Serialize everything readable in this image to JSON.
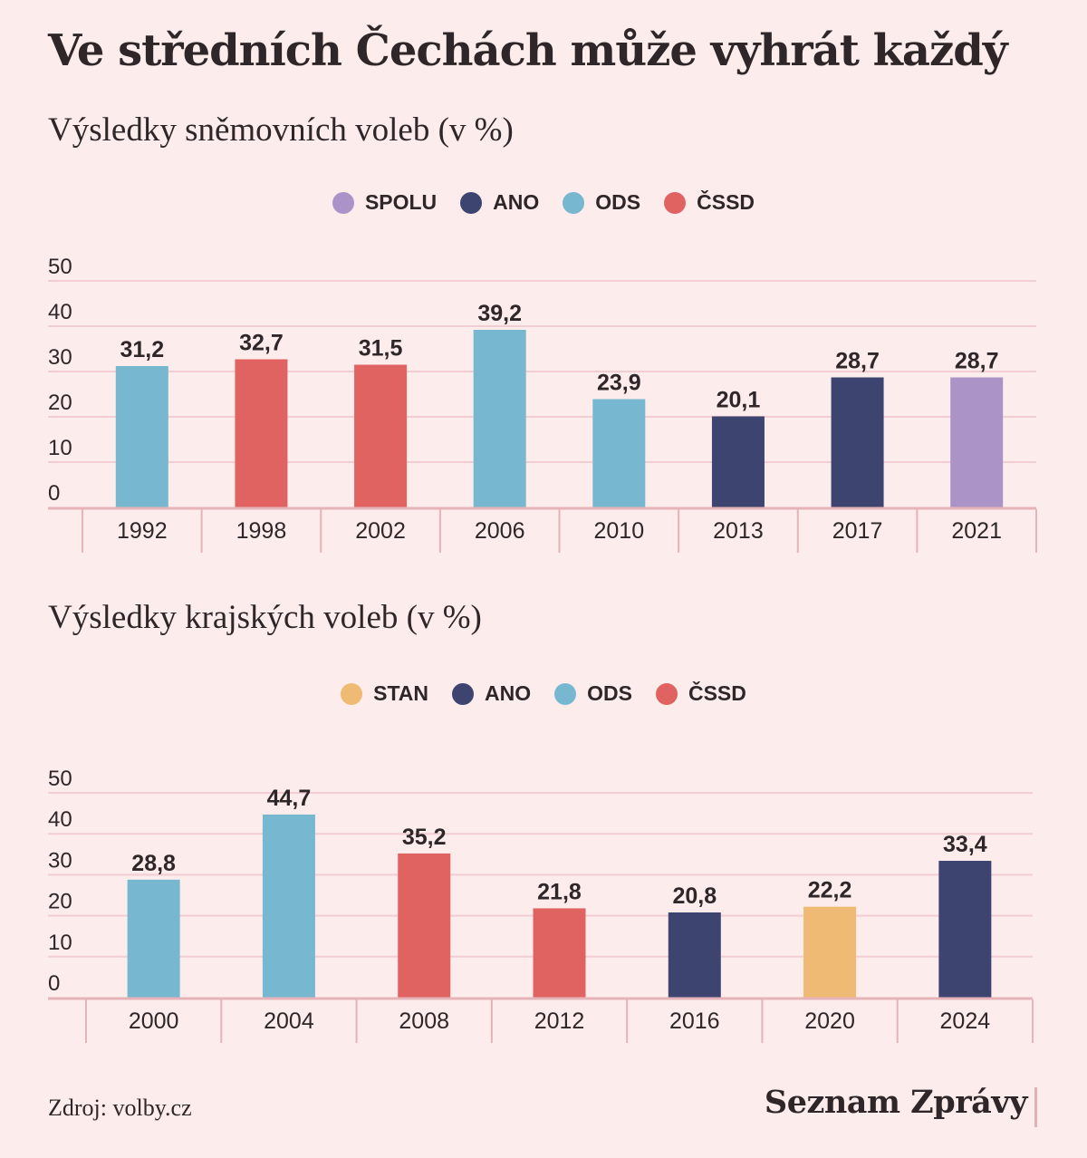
{
  "title": "Ve středních Čechách může vyhrát každý",
  "source": "Zdroj: volby.cz",
  "brand": "Seznam Zprávy",
  "colors": {
    "SPOLU": "#ab93c8",
    "ANO": "#3d4470",
    "ODS": "#77b7cf",
    "ČSSD": "#e06362",
    "STAN": "#efbb74"
  },
  "chart_data": [
    {
      "type": "bar",
      "title": "Výsledky sněmovních voleb (v %)",
      "legend": [
        "SPOLU",
        "ANO",
        "ODS",
        "ČSSD"
      ],
      "legend_placement": "top-center",
      "categories": [
        "1992",
        "1998",
        "2002",
        "2006",
        "2010",
        "2013",
        "2017",
        "2021"
      ],
      "values": [
        31.2,
        32.7,
        31.5,
        39.2,
        23.9,
        20.1,
        28.7,
        28.7
      ],
      "value_labels": [
        "31,2",
        "32,7",
        "31,5",
        "39,2",
        "23,9",
        "20,1",
        "28,7",
        "28,7"
      ],
      "parties": [
        "ODS",
        "ČSSD",
        "ČSSD",
        "ODS",
        "ODS",
        "ANO",
        "ANO",
        "SPOLU"
      ],
      "ylim": [
        0,
        50
      ],
      "yticks": [
        0,
        10,
        20,
        30,
        40,
        50
      ],
      "grid": true
    },
    {
      "type": "bar",
      "title": "Výsledky krajských voleb (v %)",
      "legend": [
        "STAN",
        "ANO",
        "ODS",
        "ČSSD"
      ],
      "legend_placement": "top-center",
      "categories": [
        "2000",
        "2004",
        "2008",
        "2012",
        "2016",
        "2020",
        "2024"
      ],
      "values": [
        28.8,
        44.7,
        35.2,
        21.8,
        20.8,
        22.2,
        33.4
      ],
      "value_labels": [
        "28,8",
        "44,7",
        "35,2",
        "21,8",
        "20,8",
        "22,2",
        "33,4"
      ],
      "parties": [
        "ODS",
        "ODS",
        "ČSSD",
        "ČSSD",
        "ANO",
        "STAN",
        "ANO"
      ],
      "ylim": [
        0,
        50
      ],
      "yticks": [
        0,
        10,
        20,
        30,
        40,
        50
      ],
      "grid": true
    }
  ]
}
